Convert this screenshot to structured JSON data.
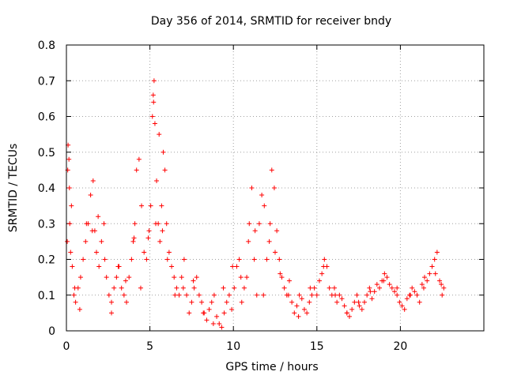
{
  "colors": {
    "series": "#ff0000",
    "axis": "#000000",
    "grid": "#a0a0a0",
    "background": "#ffffff"
  },
  "chart_data": {
    "type": "scatter",
    "title": "Day 356 of 2014, SRMTID for receiver bndy",
    "xlabel": "GPS time / hours",
    "ylabel": "SRMTID / TECUs",
    "xlim": [
      0,
      25
    ],
    "ylim": [
      0,
      0.8
    ],
    "xticks": [
      0,
      5,
      10,
      15,
      20
    ],
    "xtick_labels": [
      "0",
      "5",
      "10",
      "15",
      "20"
    ],
    "yticks": [
      0,
      0.1,
      0.2,
      0.3,
      0.4,
      0.5,
      0.6,
      0.7,
      0.8
    ],
    "ytick_labels": [
      "0",
      "0.1",
      "0.2",
      "0.3",
      "0.4",
      "0.5",
      "0.6",
      "0.7",
      "0.8"
    ],
    "grid": true,
    "marker": "+",
    "series": [
      {
        "name": "SRMTID",
        "color": "#ff0000",
        "x": [
          0.05,
          0.1,
          0.15,
          0.2,
          0.25,
          0.35,
          0.45,
          0.55,
          0.7,
          0.85,
          1.0,
          1.15,
          1.3,
          1.45,
          1.6,
          1.7,
          1.8,
          1.95,
          2.1,
          2.25,
          2.4,
          2.55,
          2.7,
          2.85,
          3.0,
          3.15,
          3.3,
          3.45,
          3.6,
          3.75,
          3.9,
          4.0,
          4.1,
          4.2,
          4.35,
          4.5,
          4.65,
          4.8,
          4.95,
          5.05,
          5.15,
          5.2,
          5.25,
          5.3,
          5.4,
          5.5,
          5.6,
          5.7,
          5.8,
          5.9,
          6.0,
          6.15,
          6.3,
          6.45,
          6.6,
          6.75,
          6.9,
          7.05,
          7.2,
          7.35,
          7.5,
          7.65,
          7.8,
          7.95,
          8.1,
          8.25,
          8.4,
          8.55,
          8.7,
          8.85,
          9.0,
          9.15,
          9.3,
          9.45,
          9.6,
          9.75,
          9.9,
          10.05,
          10.2,
          10.35,
          10.5,
          10.65,
          10.8,
          10.95,
          11.1,
          11.25,
          11.4,
          11.55,
          11.7,
          11.85,
          12.0,
          12.15,
          12.3,
          12.45,
          12.6,
          12.75,
          12.9,
          13.05,
          13.2,
          13.35,
          13.5,
          13.65,
          13.8,
          13.95,
          14.1,
          14.25,
          14.4,
          14.55,
          14.7,
          14.85,
          15.0,
          15.15,
          15.3,
          15.45,
          15.6,
          15.75,
          15.9,
          16.05,
          16.2,
          16.35,
          16.5,
          16.65,
          16.8,
          16.95,
          17.1,
          17.25,
          17.4,
          17.55,
          17.7,
          17.85,
          18.0,
          18.15,
          18.3,
          18.45,
          18.6,
          18.75,
          18.9,
          19.05,
          19.2,
          19.35,
          19.5,
          19.65,
          19.8,
          19.95,
          20.1,
          20.25,
          20.4,
          20.55,
          20.7,
          20.85,
          21.0,
          21.15,
          21.3,
          21.45,
          21.6,
          21.75,
          21.9,
          22.05,
          22.2,
          22.35,
          22.5,
          22.6,
          0.08,
          0.18,
          0.3,
          0.5,
          0.8,
          1.2,
          1.55,
          1.9,
          2.3,
          2.7,
          3.1,
          3.55,
          4.05,
          4.45,
          4.9,
          5.22,
          5.35,
          5.55,
          5.75,
          6.05,
          6.5,
          7.0,
          7.6,
          8.2,
          8.8,
          9.4,
          9.95,
          10.45,
          10.9,
          11.3,
          11.8,
          12.2,
          12.5,
          12.8,
          13.3,
          13.9,
          14.6,
          15.4,
          16.1,
          16.8,
          17.5,
          18.2,
          19.0,
          19.8,
          20.6,
          21.4,
          22.1,
          22.45
        ],
        "y": [
          0.25,
          0.52,
          0.48,
          0.3,
          0.22,
          0.18,
          0.1,
          0.08,
          0.12,
          0.15,
          0.2,
          0.25,
          0.3,
          0.38,
          0.42,
          0.28,
          0.22,
          0.18,
          0.25,
          0.3,
          0.15,
          0.1,
          0.08,
          0.12,
          0.15,
          0.18,
          0.12,
          0.1,
          0.08,
          0.15,
          0.2,
          0.25,
          0.3,
          0.45,
          0.48,
          0.35,
          0.22,
          0.2,
          0.28,
          0.35,
          0.6,
          0.66,
          0.7,
          0.58,
          0.42,
          0.3,
          0.25,
          0.35,
          0.5,
          0.45,
          0.3,
          0.22,
          0.18,
          0.15,
          0.12,
          0.1,
          0.15,
          0.2,
          0.1,
          0.05,
          0.08,
          0.12,
          0.15,
          0.1,
          0.08,
          0.05,
          0.03,
          0.06,
          0.08,
          0.1,
          0.04,
          0.02,
          0.01,
          0.05,
          0.08,
          0.1,
          0.06,
          0.12,
          0.18,
          0.2,
          0.08,
          0.12,
          0.15,
          0.3,
          0.4,
          0.2,
          0.1,
          0.3,
          0.38,
          0.35,
          0.2,
          0.25,
          0.45,
          0.4,
          0.28,
          0.2,
          0.15,
          0.12,
          0.1,
          0.14,
          0.08,
          0.05,
          0.07,
          0.1,
          0.09,
          0.06,
          0.05,
          0.08,
          0.1,
          0.12,
          0.1,
          0.14,
          0.16,
          0.2,
          0.18,
          0.12,
          0.1,
          0.12,
          0.08,
          0.1,
          0.09,
          0.07,
          0.05,
          0.04,
          0.06,
          0.08,
          0.1,
          0.07,
          0.06,
          0.08,
          0.1,
          0.12,
          0.09,
          0.11,
          0.13,
          0.12,
          0.14,
          0.16,
          0.15,
          0.13,
          0.12,
          0.11,
          0.1,
          0.08,
          0.07,
          0.06,
          0.09,
          0.1,
          0.12,
          0.11,
          0.1,
          0.08,
          0.13,
          0.15,
          0.14,
          0.16,
          0.18,
          0.2,
          0.22,
          0.14,
          0.1,
          0.12,
          0.45,
          0.4,
          0.35,
          0.12,
          0.06,
          0.3,
          0.28,
          0.32,
          0.2,
          0.05,
          0.18,
          0.14,
          0.26,
          0.12,
          0.26,
          0.64,
          0.3,
          0.55,
          0.28,
          0.2,
          0.1,
          0.12,
          0.14,
          0.05,
          0.02,
          0.12,
          0.18,
          0.15,
          0.25,
          0.28,
          0.1,
          0.3,
          0.22,
          0.16,
          0.1,
          0.04,
          0.12,
          0.18,
          0.1,
          0.05,
          0.08,
          0.11,
          0.14,
          0.12,
          0.1,
          0.12,
          0.16,
          0.13
        ]
      }
    ]
  }
}
